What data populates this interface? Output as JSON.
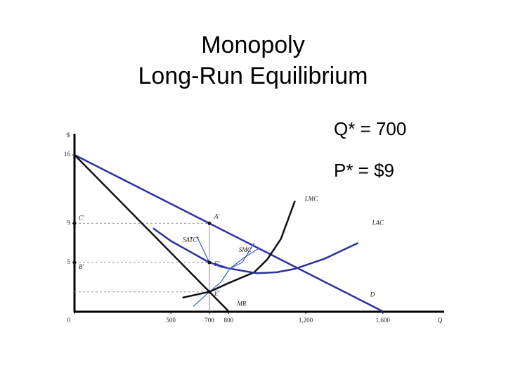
{
  "chart_data": {
    "type": "line",
    "title": [
      "Monopoly",
      "Long-Run Equilibrium"
    ],
    "annotations": [
      "Q* = 700",
      "P* = $9"
    ],
    "y_label": "$",
    "x_label": "Q",
    "xlim": [
      0,
      1900
    ],
    "ylim": [
      0,
      18
    ],
    "xticks": [
      0,
      500,
      700,
      800,
      {
        "value": 1200,
        "label": "1,200"
      },
      {
        "value": 1600,
        "label": "1,600"
      }
    ],
    "yticks": [
      16,
      9,
      5
    ],
    "series": [
      {
        "name": "D",
        "color": "#2b2f9e",
        "x": [
          0,
          1600
        ],
        "values": [
          16,
          0
        ]
      },
      {
        "name": "MR",
        "color": "#111111",
        "x": [
          0,
          800
        ],
        "values": [
          16,
          0
        ]
      },
      {
        "name": "LMC",
        "color": "#111111",
        "x": [
          560,
          700,
          800,
          933,
          1000,
          1071,
          1144
        ],
        "values": [
          1.4,
          2,
          2.9,
          4,
          5.3,
          7.4,
          11.3
        ]
      },
      {
        "name": "LAC",
        "color": "#2b2f9e",
        "x": [
          408,
          500,
          600,
          700,
          800,
          944,
          1050,
          1144,
          1300,
          1472
        ],
        "values": [
          8.5,
          7.2,
          6.1,
          5,
          4.4,
          3.9,
          4,
          4.35,
          5.4,
          7
        ]
      },
      {
        "name": "SATC'",
        "color": "#3a5fc0",
        "x": [
          634,
          700,
          760,
          805,
          870,
          933
        ],
        "values": [
          7.7,
          5,
          4.5,
          4.35,
          5,
          7
        ]
      },
      {
        "name": "SMC",
        "color": "#3a5fc0",
        "x": [
          616,
          700,
          760,
          805,
          880,
          962
        ],
        "values": [
          0.5,
          2,
          3,
          4.35,
          5.5,
          6.5
        ]
      }
    ],
    "points": [
      {
        "name": "A'",
        "x": 700,
        "y": 9
      },
      {
        "name": "F'",
        "x": 700,
        "y": 5
      },
      {
        "name": "E'",
        "x": 700,
        "y": 2
      },
      {
        "name": "C'",
        "x": 0,
        "y": 9
      },
      {
        "name": "B'",
        "x": 0,
        "y": 5
      }
    ]
  }
}
